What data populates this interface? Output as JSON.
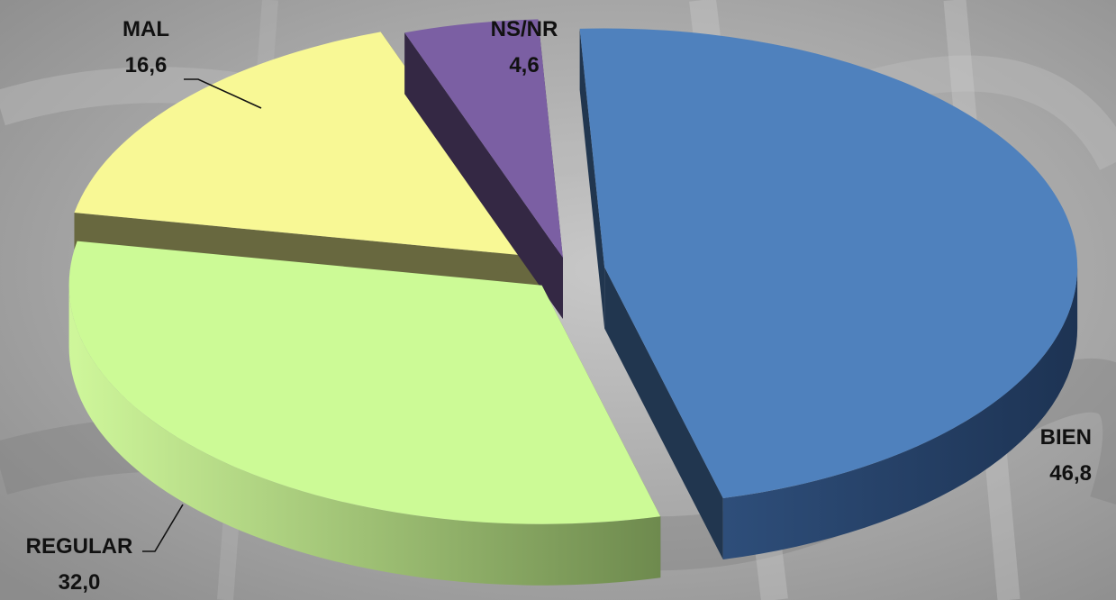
{
  "chart_data": {
    "type": "pie",
    "style": "3d-exploded",
    "slices": [
      {
        "name": "BIEN",
        "value": 46.8,
        "value_label": "46,8",
        "color": "#4f81bd"
      },
      {
        "name": "REGULAR",
        "value": 32.0,
        "value_label": "32,0",
        "color": "#ccfa96"
      },
      {
        "name": "MAL",
        "value": 16.6,
        "value_label": "16,6",
        "color": "#f8f895"
      },
      {
        "name": "NS/NR",
        "value": 4.6,
        "value_label": "4,6",
        "color": "#7b5fa3"
      }
    ],
    "title": "",
    "legend": "none",
    "background": "grayscale photograph"
  }
}
